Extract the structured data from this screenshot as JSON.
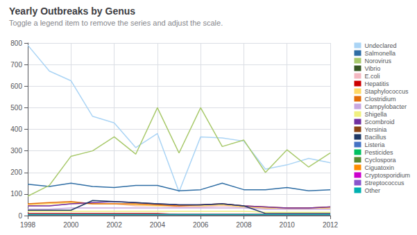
{
  "chart_data": {
    "type": "line",
    "title": "Yearly Outbreaks by Genus",
    "subtitle": "Toggle a legend item to remove the series and adjust the scale.",
    "x": [
      1998,
      1999,
      2000,
      2001,
      2002,
      2003,
      2004,
      2005,
      2006,
      2007,
      2008,
      2009,
      2010,
      2011,
      2012
    ],
    "series": [
      {
        "name": "Undeclared",
        "color": "#aad4f5",
        "values": [
          790,
          670,
          625,
          460,
          430,
          315,
          380,
          110,
          365,
          360,
          345,
          215,
          235,
          265,
          245
        ]
      },
      {
        "name": "Salmonella",
        "color": "#2e6da4",
        "values": [
          145,
          135,
          150,
          135,
          130,
          140,
          140,
          115,
          120,
          150,
          120,
          120,
          130,
          115,
          120
        ]
      },
      {
        "name": "Norovirus",
        "color": "#a8c96b",
        "values": [
          90,
          140,
          275,
          300,
          365,
          285,
          500,
          290,
          500,
          320,
          350,
          200,
          305,
          225,
          290
        ]
      },
      {
        "name": "Vibrio",
        "color": "#375623",
        "values": [
          5,
          5,
          5,
          5,
          5,
          5,
          5,
          5,
          5,
          5,
          5,
          5,
          5,
          5,
          5
        ]
      },
      {
        "name": "E.coli",
        "color": "#f4b8c1",
        "values": [
          45,
          45,
          55,
          55,
          55,
          45,
          45,
          40,
          40,
          45,
          40,
          35,
          35,
          35,
          40
        ]
      },
      {
        "name": "Hepatitis",
        "color": "#cc0000",
        "values": [
          10,
          10,
          10,
          10,
          10,
          10,
          10,
          5,
          5,
          5,
          5,
          5,
          5,
          5,
          5
        ]
      },
      {
        "name": "Staphylococcus",
        "color": "#ffd966",
        "values": [
          50,
          55,
          60,
          55,
          55,
          50,
          45,
          45,
          45,
          50,
          40,
          35,
          30,
          30,
          35
        ]
      },
      {
        "name": "Clostridium",
        "color": "#e36c09",
        "values": [
          55,
          60,
          65,
          55,
          55,
          55,
          50,
          45,
          50,
          55,
          45,
          40,
          35,
          35,
          40
        ]
      },
      {
        "name": "Campylobacter",
        "color": "#c8a8e0",
        "values": [
          30,
          30,
          35,
          35,
          35,
          35,
          35,
          35,
          35,
          35,
          35,
          30,
          30,
          30,
          30
        ]
      },
      {
        "name": "Shigella",
        "color": "#f0f080",
        "values": [
          20,
          20,
          20,
          20,
          20,
          20,
          20,
          20,
          20,
          20,
          20,
          15,
          15,
          15,
          15
        ]
      },
      {
        "name": "Scombroid",
        "color": "#7030a0",
        "values": [
          45,
          45,
          55,
          60,
          65,
          60,
          55,
          50,
          50,
          55,
          45,
          40,
          35,
          35,
          40
        ]
      },
      {
        "name": "Yersinia",
        "color": "#8B4513",
        "values": [
          5,
          5,
          5,
          5,
          5,
          5,
          5,
          5,
          5,
          5,
          5,
          5,
          5,
          5,
          5
        ]
      },
      {
        "name": "Bacillus",
        "color": "#1f3864",
        "values": [
          25,
          25,
          25,
          70,
          65,
          60,
          55,
          50,
          50,
          55,
          45,
          10,
          10,
          10,
          10
        ]
      },
      {
        "name": "Listeria",
        "color": "#4472c4",
        "values": [
          5,
          5,
          5,
          5,
          5,
          5,
          5,
          5,
          5,
          5,
          5,
          5,
          5,
          5,
          5
        ]
      },
      {
        "name": "Pesticides",
        "color": "#00c060",
        "values": [
          5,
          5,
          5,
          5,
          5,
          5,
          5,
          5,
          5,
          5,
          5,
          5,
          5,
          5,
          5
        ]
      },
      {
        "name": "Cyclospora",
        "color": "#5a8a30",
        "values": [
          5,
          5,
          5,
          5,
          5,
          5,
          5,
          5,
          5,
          5,
          5,
          5,
          5,
          5,
          5
        ]
      },
      {
        "name": "Ciguatoxin",
        "color": "#ff8c00",
        "values": [
          5,
          5,
          5,
          5,
          5,
          5,
          5,
          5,
          5,
          5,
          5,
          5,
          5,
          5,
          5
        ]
      },
      {
        "name": "Cryptosporidium",
        "color": "#cc00cc",
        "values": [
          5,
          5,
          5,
          5,
          5,
          5,
          5,
          5,
          5,
          5,
          5,
          5,
          5,
          5,
          5
        ]
      },
      {
        "name": "Streptococcus",
        "color": "#8855cc",
        "values": [
          5,
          5,
          5,
          5,
          5,
          5,
          5,
          5,
          5,
          5,
          5,
          5,
          5,
          5,
          5
        ]
      },
      {
        "name": "Other",
        "color": "#00b0b0",
        "values": [
          5,
          5,
          5,
          5,
          5,
          5,
          5,
          5,
          5,
          5,
          5,
          5,
          5,
          5,
          5
        ]
      }
    ],
    "xlim": [
      1998,
      2012
    ],
    "xticks": [
      1998,
      2000,
      2002,
      2004,
      2006,
      2008,
      2010,
      2012
    ],
    "ylim": [
      0,
      800
    ],
    "yticks": [
      0,
      100,
      200,
      300,
      400,
      500,
      600,
      700,
      800
    ],
    "grid": true,
    "legend": "right"
  }
}
